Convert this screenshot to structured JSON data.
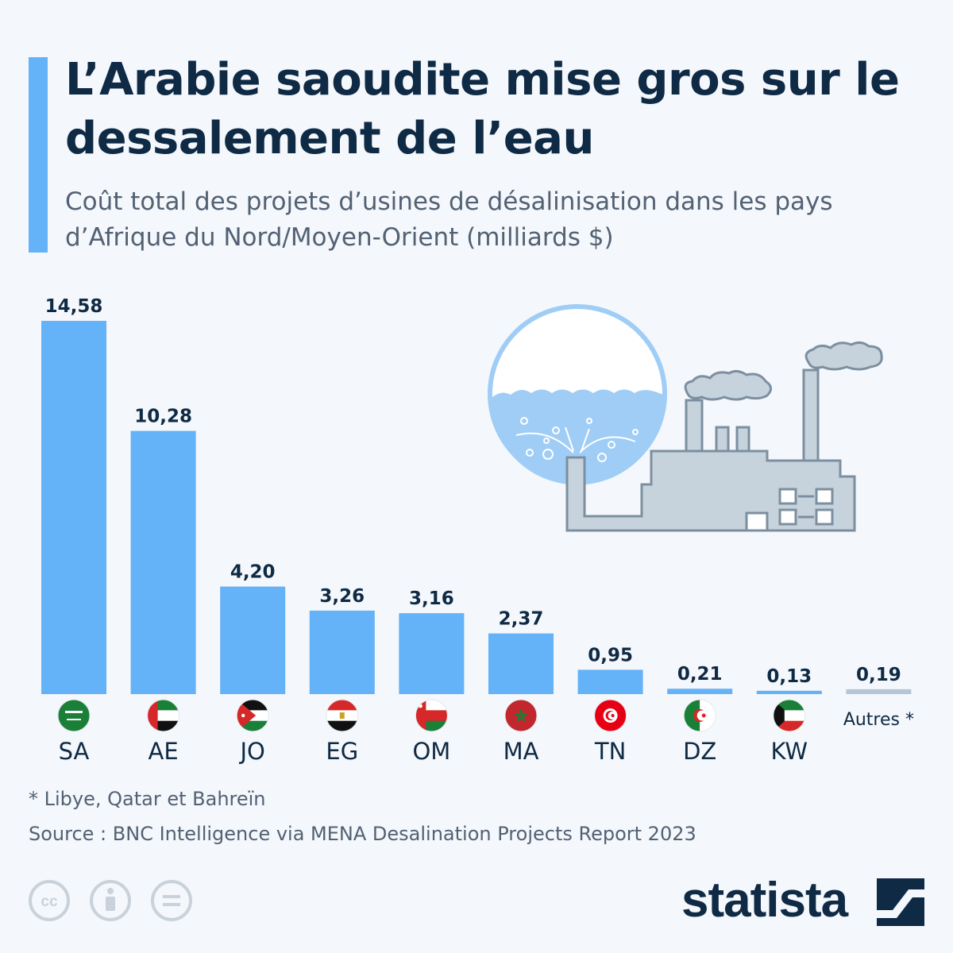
{
  "header": {
    "title": "L’Arabie saoudite mise gros sur le dessalement de l’eau",
    "subtitle": "Coût total des projets d’usines de désalinisation dans les pays d’Afrique du Nord/Moyen-Orient (milliards $)"
  },
  "chart_data": {
    "type": "bar",
    "title": "L’Arabie saoudite mise gros sur le dessalement de l’eau",
    "subtitle": "Coût total des projets d’usines de désalinisation dans les pays d’Afrique du Nord/Moyen-Orient (milliards $)",
    "unit": "milliards $",
    "xlabel": "",
    "ylabel": "",
    "ylim": [
      0,
      14.58
    ],
    "grid": false,
    "categories": [
      "SA",
      "AE",
      "JO",
      "EG",
      "OM",
      "MA",
      "TN",
      "DZ",
      "KW",
      "Autres *"
    ],
    "values": [
      14.58,
      10.28,
      4.2,
      3.26,
      3.16,
      2.37,
      0.95,
      0.21,
      0.13,
      0.19
    ],
    "value_labels": [
      "14,58",
      "10,28",
      "4,20",
      "3,26",
      "3,16",
      "2,37",
      "0,95",
      "0,21",
      "0,13",
      "0,19"
    ],
    "flags": [
      "saudi-arabia-flag-icon",
      "uae-flag-icon",
      "jordan-flag-icon",
      "egypt-flag-icon",
      "oman-flag-icon",
      "morocco-flag-icon",
      "tunisia-flag-icon",
      "algeria-flag-icon",
      "kuwait-flag-icon",
      ""
    ],
    "bar_color": "#64b2f8",
    "other_bar_color": "#b4c7d6"
  },
  "footer": {
    "footnote": "* Libye, Qatar et Bahreïn",
    "source": "Source : BNC Intelligence via MENA Desalination Projects Report 2023",
    "brand": "statista"
  },
  "colors": {
    "background": "#f4f7fb",
    "title": "#0f2a44",
    "accent": "#64b2f8",
    "muted": "#526173",
    "factory": "#c7d3dc",
    "factory_stroke": "#7c8fa0"
  }
}
